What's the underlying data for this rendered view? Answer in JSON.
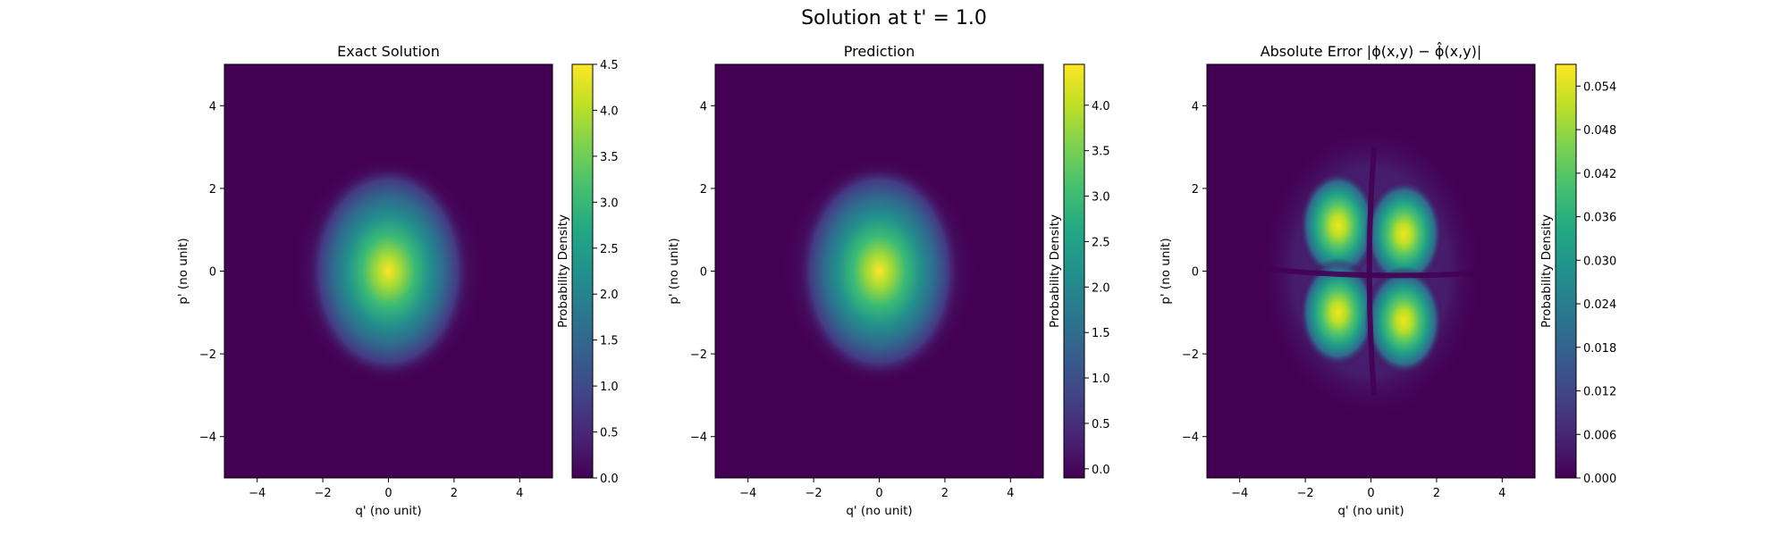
{
  "figure": {
    "title": "Solution at t' = 1.0"
  },
  "chart_data": [
    {
      "type": "heatmap",
      "title": "Exact Solution",
      "xlabel": "q' (no unit)",
      "ylabel": "p' (no unit)",
      "xlim": [
        -5,
        5
      ],
      "ylim": [
        -5,
        5
      ],
      "xticks": [
        "−4",
        "−2",
        "0",
        "2",
        "4"
      ],
      "yticks": [
        "−4",
        "−2",
        "0",
        "2",
        "4"
      ],
      "xtick_values": [
        -4,
        -2,
        0,
        2,
        4
      ],
      "ytick_values": [
        -4,
        -2,
        0,
        2,
        4
      ],
      "field": {
        "kind": "gaussian",
        "center": [
          0,
          0
        ],
        "sigma": [
          1.0,
          1.25
        ],
        "peak": 4.5
      },
      "colorbar": {
        "label": "Probability Density",
        "range": [
          0.0,
          4.5
        ],
        "tick_values": [
          0.0,
          0.5,
          1.0,
          1.5,
          2.0,
          2.5,
          3.0,
          3.5,
          4.0,
          4.5
        ],
        "tick_labels": [
          "0.0",
          "0.5",
          "1.0",
          "1.5",
          "2.0",
          "2.5",
          "3.0",
          "3.5",
          "4.0",
          "4.5"
        ]
      }
    },
    {
      "type": "heatmap",
      "title": "Prediction",
      "xlabel": "q' (no unit)",
      "ylabel": "p' (no unit)",
      "xlim": [
        -5,
        5
      ],
      "ylim": [
        -5,
        5
      ],
      "xticks": [
        "−4",
        "−2",
        "0",
        "2",
        "4"
      ],
      "yticks": [
        "−4",
        "−2",
        "0",
        "2",
        "4"
      ],
      "xtick_values": [
        -4,
        -2,
        0,
        2,
        4
      ],
      "ytick_values": [
        -4,
        -2,
        0,
        2,
        4
      ],
      "field": {
        "kind": "gaussian",
        "center": [
          0,
          0
        ],
        "sigma": [
          1.0,
          1.25
        ],
        "peak": 4.45
      },
      "colorbar": {
        "label": "Probability Density",
        "range": [
          -0.1,
          4.45
        ],
        "tick_values": [
          0.0,
          0.5,
          1.0,
          1.5,
          2.0,
          2.5,
          3.0,
          3.5,
          4.0
        ],
        "tick_labels": [
          "0.0",
          "0.5",
          "1.0",
          "1.5",
          "2.0",
          "2.5",
          "3.0",
          "3.5",
          "4.0"
        ]
      }
    },
    {
      "type": "heatmap",
      "title": "Absolute Error |ϕ(x,y) − ϕ̂(x,y)|",
      "xlabel": "q' (no unit)",
      "ylabel": "p' (no unit)",
      "xlim": [
        -5,
        5
      ],
      "ylim": [
        -5,
        5
      ],
      "xticks": [
        "−4",
        "−2",
        "0",
        "2",
        "4"
      ],
      "yticks": [
        "−4",
        "−2",
        "0",
        "2",
        "4"
      ],
      "xtick_values": [
        -4,
        -2,
        0,
        2,
        4
      ],
      "ytick_values": [
        -4,
        -2,
        0,
        2,
        4
      ],
      "field": {
        "kind": "four-lobe",
        "lobe_centers": [
          [
            -1.0,
            1.1
          ],
          [
            1.0,
            0.9
          ],
          [
            -1.0,
            -1.0
          ],
          [
            1.0,
            -1.2
          ]
        ],
        "sigma": 0.6,
        "peak": 0.057
      },
      "colorbar": {
        "label": "Probability Density",
        "range": [
          0.0,
          0.057
        ],
        "tick_values": [
          0.0,
          0.006,
          0.012,
          0.018,
          0.024,
          0.03,
          0.036,
          0.042,
          0.048,
          0.054
        ],
        "tick_labels": [
          "0.000",
          "0.006",
          "0.012",
          "0.018",
          "0.024",
          "0.030",
          "0.036",
          "0.042",
          "0.048",
          "0.054"
        ]
      }
    }
  ]
}
